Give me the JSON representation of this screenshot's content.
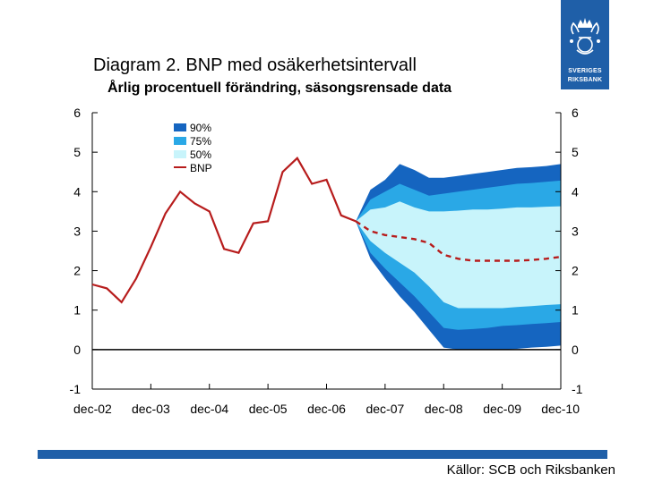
{
  "header": {
    "title": "Diagram 2. BNP med osäkerhetsintervall",
    "subtitle": "Årlig procentuell förändring, säsongsrensade data"
  },
  "logo": {
    "line1": "SVERIGES",
    "line2": "RIKSBANK",
    "icon": "riksbank-crown-logo-icon"
  },
  "footer": {
    "source": "Källor: SCB och Riksbanken"
  },
  "colors": {
    "band90": "#1565c0",
    "band75": "#2aa8e6",
    "band50": "#c8f4fb",
    "line": "#b71c1c",
    "accent": "#1f5fa8"
  },
  "chart_data": {
    "type": "area",
    "x_labels": [
      "dec-02",
      "dec-03",
      "dec-04",
      "dec-05",
      "dec-06",
      "dec-07",
      "dec-08",
      "dec-09",
      "dec-10"
    ],
    "ylim": [
      -1,
      6
    ],
    "yticks": [
      "-1",
      "0",
      "1",
      "2",
      "3",
      "4",
      "5",
      "6"
    ],
    "grid": false,
    "legend": [
      {
        "label": "90%",
        "key": "band90"
      },
      {
        "label": "75%",
        "key": "band75"
      },
      {
        "label": "50%",
        "key": "band50"
      },
      {
        "label": "BNP",
        "key": "line"
      }
    ],
    "legend_position": "top-left",
    "bnp_outcome": {
      "x": [
        0,
        0.25,
        0.5,
        0.75,
        1,
        1.25,
        1.5,
        1.75,
        2,
        2.25,
        2.5,
        2.75,
        3,
        3.25,
        3.5,
        3.75,
        4,
        4.25,
        4.5
      ],
      "y": [
        1.65,
        1.55,
        1.2,
        1.8,
        2.6,
        3.45,
        4.0,
        3.7,
        3.5,
        2.55,
        2.45,
        3.2,
        3.25,
        4.5,
        4.85,
        4.2,
        4.3,
        3.4,
        3.25
      ]
    },
    "bnp_forecast": {
      "x": [
        4.5,
        4.75,
        5,
        5.25,
        5.5,
        5.75,
        6,
        6.25,
        6.5,
        6.75,
        7,
        7.25,
        7.5,
        7.75,
        8
      ],
      "y": [
        3.25,
        3.0,
        2.9,
        2.85,
        2.8,
        2.7,
        2.4,
        2.3,
        2.25,
        2.25,
        2.25,
        2.25,
        2.27,
        2.3,
        2.35
      ]
    },
    "bands": {
      "x": [
        4.5,
        4.75,
        5,
        5.25,
        5.5,
        5.75,
        6,
        6.25,
        6.5,
        6.75,
        7,
        7.25,
        7.5,
        7.75,
        8
      ],
      "upper90": [
        3.25,
        4.05,
        4.3,
        4.7,
        4.55,
        4.35,
        4.35,
        4.4,
        4.45,
        4.5,
        4.55,
        4.6,
        4.62,
        4.65,
        4.7
      ],
      "upper75": [
        3.25,
        3.8,
        4.0,
        4.2,
        4.05,
        3.9,
        3.95,
        4.0,
        4.05,
        4.1,
        4.15,
        4.2,
        4.22,
        4.25,
        4.28
      ],
      "upper50": [
        3.25,
        3.55,
        3.6,
        3.75,
        3.6,
        3.5,
        3.5,
        3.52,
        3.55,
        3.55,
        3.57,
        3.6,
        3.6,
        3.62,
        3.63
      ],
      "lower50": [
        3.25,
        2.75,
        2.45,
        2.2,
        1.95,
        1.6,
        1.2,
        1.05,
        1.05,
        1.05,
        1.05,
        1.08,
        1.1,
        1.13,
        1.15
      ],
      "lower75": [
        3.25,
        2.45,
        2.05,
        1.7,
        1.35,
        0.95,
        0.55,
        0.5,
        0.52,
        0.55,
        0.6,
        0.62,
        0.65,
        0.67,
        0.7
      ],
      "lower90": [
        3.25,
        2.3,
        1.8,
        1.35,
        0.95,
        0.5,
        0.05,
        0.0,
        0.0,
        0.0,
        0.0,
        0.02,
        0.05,
        0.07,
        0.1
      ]
    }
  }
}
